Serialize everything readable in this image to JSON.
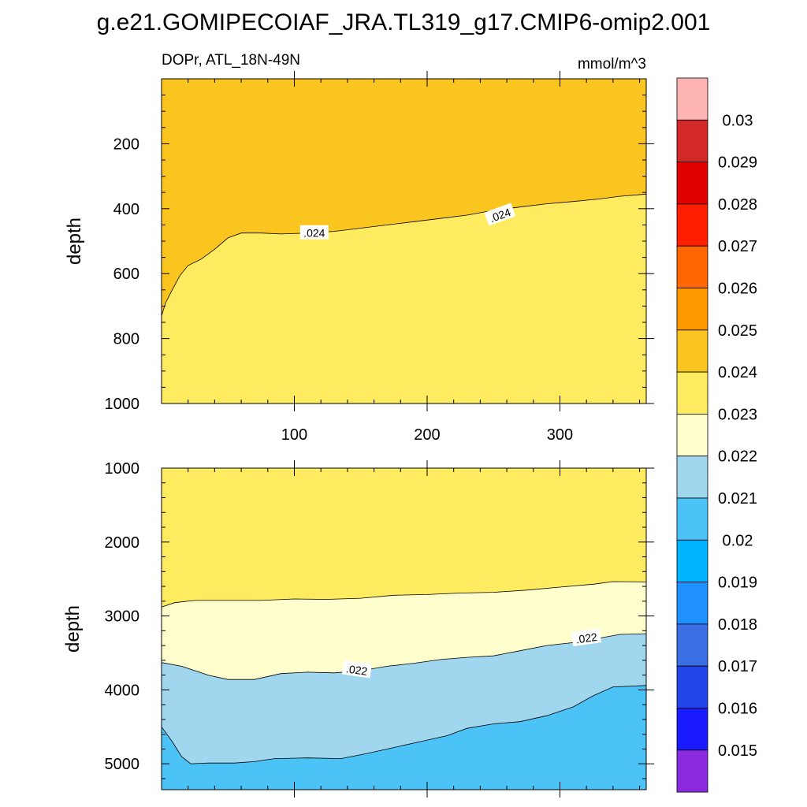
{
  "figure": {
    "title": "g.e21.GOMIPECOIAF_JRA.TL319_g17.CMIP6-omip2.001",
    "variable_label": "DOPr, ATL_18N-49N",
    "units": "mmol/m^3"
  },
  "chart_data": [
    {
      "type": "contour",
      "panel": "upper",
      "xlim": [
        0,
        365
      ],
      "ylim": [
        0,
        1000
      ],
      "y_inverted": true,
      "ylabel": "depth",
      "x_ticks": [
        100,
        200,
        300
      ],
      "x_tick_labels": [
        "100",
        "200",
        "300"
      ],
      "y_ticks": [
        200,
        400,
        600,
        800,
        1000
      ],
      "y_tick_labels": [
        "200",
        "400",
        "600",
        "800",
        "1000"
      ],
      "regions": [
        {
          "range": "0.024-0.025",
          "color": "#fbc51f",
          "position": "above the 0.024 contour"
        },
        {
          "range": "0.023-0.024",
          "color": "#feeb5f",
          "position": "below the 0.024 contour"
        }
      ],
      "contours": [
        {
          "level": 0.024,
          "label": ".024",
          "points": [
            [
              0,
              730
            ],
            [
              3,
              690
            ],
            [
              8,
              650
            ],
            [
              14,
              605
            ],
            [
              20,
              575
            ],
            [
              30,
              555
            ],
            [
              40,
              525
            ],
            [
              50,
              490
            ],
            [
              60,
              475
            ],
            [
              75,
              475
            ],
            [
              90,
              478
            ],
            [
              110,
              475
            ],
            [
              130,
              470
            ],
            [
              150,
              460
            ],
            [
              170,
              450
            ],
            [
              190,
              440
            ],
            [
              210,
              430
            ],
            [
              230,
              420
            ],
            [
              250,
              405
            ],
            [
              270,
              395
            ],
            [
              290,
              385
            ],
            [
              310,
              378
            ],
            [
              330,
              370
            ],
            [
              345,
              362
            ],
            [
              365,
              355
            ]
          ]
        }
      ],
      "contour_labels": [
        {
          "text": ".024",
          "x": 115,
          "depth": 475,
          "angle": 0
        },
        {
          "text": ".024",
          "x": 255,
          "depth": 420,
          "angle": -20
        }
      ]
    },
    {
      "type": "contour",
      "panel": "lower",
      "xlim": [
        0,
        365
      ],
      "ylim": [
        1000,
        5350
      ],
      "y_inverted": true,
      "ylabel": "depth",
      "y_ticks": [
        1000,
        2000,
        3000,
        4000,
        5000
      ],
      "y_tick_labels": [
        "1000",
        "2000",
        "3000",
        "4000",
        "5000"
      ],
      "regions": [
        {
          "range": "0.023-0.024",
          "color": "#feeb5f",
          "position": "above the 0.023 contour"
        },
        {
          "range": "0.022-0.023",
          "color": "#feffcc",
          "position": "between 0.023 and 0.022 contours"
        },
        {
          "range": "0.021-0.022",
          "color": "#a0d6ee",
          "position": "between 0.022 and 0.021 contours"
        },
        {
          "range": "0.020-0.021",
          "color": "#4cc3f6",
          "position": "below the 0.021 contour"
        }
      ],
      "contours": [
        {
          "level": 0.023,
          "label": "",
          "points": [
            [
              0,
              2880
            ],
            [
              10,
              2820
            ],
            [
              25,
              2790
            ],
            [
              50,
              2790
            ],
            [
              75,
              2790
            ],
            [
              100,
              2770
            ],
            [
              125,
              2775
            ],
            [
              150,
              2760
            ],
            [
              175,
              2720
            ],
            [
              200,
              2710
            ],
            [
              225,
              2690
            ],
            [
              250,
              2680
            ],
            [
              275,
              2650
            ],
            [
              300,
              2610
            ],
            [
              325,
              2570
            ],
            [
              340,
              2535
            ],
            [
              365,
              2540
            ]
          ]
        },
        {
          "level": 0.022,
          "label": ".022",
          "points": [
            [
              0,
              3630
            ],
            [
              15,
              3680
            ],
            [
              35,
              3800
            ],
            [
              50,
              3860
            ],
            [
              70,
              3860
            ],
            [
              90,
              3780
            ],
            [
              110,
              3760
            ],
            [
              130,
              3770
            ],
            [
              150,
              3740
            ],
            [
              170,
              3680
            ],
            [
              190,
              3640
            ],
            [
              210,
              3590
            ],
            [
              230,
              3560
            ],
            [
              250,
              3540
            ],
            [
              270,
              3470
            ],
            [
              290,
              3400
            ],
            [
              310,
              3360
            ],
            [
              330,
              3300
            ],
            [
              345,
              3250
            ],
            [
              365,
              3240
            ]
          ]
        },
        {
          "level": 0.021,
          "label": "",
          "points": [
            [
              0,
              4500
            ],
            [
              8,
              4700
            ],
            [
              15,
              4900
            ],
            [
              22,
              5000
            ],
            [
              35,
              4990
            ],
            [
              55,
              4990
            ],
            [
              70,
              4970
            ],
            [
              85,
              4930
            ],
            [
              110,
              4920
            ],
            [
              135,
              4930
            ],
            [
              155,
              4860
            ],
            [
              175,
              4780
            ],
            [
              195,
              4700
            ],
            [
              215,
              4620
            ],
            [
              230,
              4520
            ],
            [
              250,
              4460
            ],
            [
              270,
              4430
            ],
            [
              290,
              4350
            ],
            [
              310,
              4230
            ],
            [
              325,
              4080
            ],
            [
              340,
              3960
            ],
            [
              365,
              3940
            ]
          ]
        }
      ],
      "contour_labels": [
        {
          "text": ".022",
          "x": 147,
          "depth": 3730,
          "angle": 8
        },
        {
          "text": ".022",
          "x": 320,
          "depth": 3300,
          "angle": -8
        }
      ]
    }
  ],
  "colorbar": {
    "labels": [
      "0.03",
      "0.029",
      "0.028",
      "0.027",
      "0.026",
      "0.025",
      "0.024",
      "0.023",
      "0.022",
      "0.021",
      "0.02",
      "0.019",
      "0.018",
      "0.017",
      "0.016",
      "0.015"
    ],
    "colors_top_to_bottom": [
      "#ffb4b4",
      "#d22828",
      "#e00000",
      "#ff1e00",
      "#ff6600",
      "#ff9900",
      "#fbc51f",
      "#feeb5f",
      "#feffcc",
      "#a0d6ee",
      "#4cc3f6",
      "#00b3ff",
      "#1e90ff",
      "#3a6fe3",
      "#2145e8",
      "#1a1aff",
      "#8a2be2"
    ]
  }
}
